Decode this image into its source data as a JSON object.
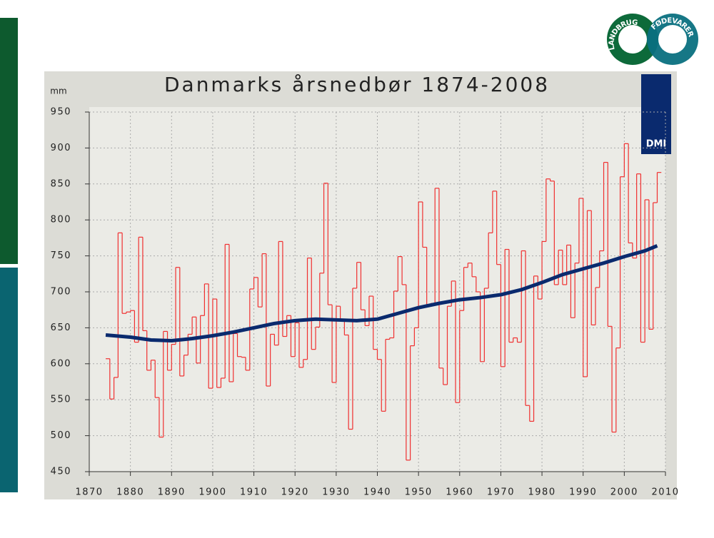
{
  "logo": {
    "left": "LANDBRUG",
    "right": "FØDEVARER"
  },
  "badge": "DMI",
  "chart_data": {
    "type": "line",
    "title": "Danmarks årsnedbør 1874-2008",
    "y_label": "mm",
    "xlim": [
      1870,
      2010
    ],
    "ylim": [
      450,
      950
    ],
    "xticks": [
      1870,
      1880,
      1890,
      1900,
      1910,
      1920,
      1930,
      1940,
      1950,
      1960,
      1970,
      1980,
      1990,
      2000,
      2010
    ],
    "yticks": [
      450,
      500,
      550,
      600,
      650,
      700,
      750,
      800,
      850,
      900,
      950
    ],
    "grid": true,
    "series": [
      {
        "color": "#f03030",
        "step": true,
        "x": [
          1874,
          1875,
          1876,
          1877,
          1878,
          1879,
          1880,
          1881,
          1882,
          1883,
          1884,
          1885,
          1886,
          1887,
          1888,
          1889,
          1890,
          1891,
          1892,
          1893,
          1894,
          1895,
          1896,
          1897,
          1898,
          1899,
          1900,
          1901,
          1902,
          1903,
          1904,
          1905,
          1906,
          1907,
          1908,
          1909,
          1910,
          1911,
          1912,
          1913,
          1914,
          1915,
          1916,
          1917,
          1918,
          1919,
          1920,
          1921,
          1922,
          1923,
          1924,
          1925,
          1926,
          1927,
          1928,
          1929,
          1930,
          1931,
          1932,
          1933,
          1934,
          1935,
          1936,
          1937,
          1938,
          1939,
          1940,
          1941,
          1942,
          1943,
          1944,
          1945,
          1946,
          1947,
          1948,
          1949,
          1950,
          1951,
          1952,
          1953,
          1954,
          1955,
          1956,
          1957,
          1958,
          1959,
          1960,
          1961,
          1962,
          1963,
          1964,
          1965,
          1966,
          1967,
          1968,
          1969,
          1970,
          1971,
          1972,
          1973,
          1974,
          1975,
          1976,
          1977,
          1978,
          1979,
          1980,
          1981,
          1982,
          1983,
          1984,
          1985,
          1986,
          1987,
          1988,
          1989,
          1990,
          1991,
          1992,
          1993,
          1994,
          1995,
          1996,
          1997,
          1998,
          1999,
          2000,
          2001,
          2002,
          2003,
          2004,
          2005,
          2006,
          2007,
          2008
        ],
        "values": [
          607,
          551,
          581,
          782,
          670,
          672,
          674,
          630,
          776,
          646,
          591,
          605,
          553,
          498,
          645,
          591,
          627,
          734,
          583,
          612,
          641,
          665,
          601,
          667,
          711,
          566,
          690,
          567,
          580,
          766,
          575,
          642,
          610,
          609,
          591,
          704,
          720,
          679,
          753,
          569,
          641,
          626,
          770,
          638,
          667,
          610,
          657,
          595,
          606,
          747,
          620,
          651,
          726,
          851,
          682,
          574,
          680,
          662,
          640,
          509,
          705,
          741,
          675,
          653,
          694,
          620,
          606,
          534,
          634,
          636,
          701,
          749,
          710,
          466,
          625,
          650,
          825,
          762,
          681,
          684,
          844,
          594,
          571,
          680,
          715,
          546,
          674,
          734,
          740,
          721,
          700,
          603,
          705,
          782,
          840,
          738,
          596,
          759,
          630,
          636,
          630,
          757,
          542,
          520,
          722,
          690,
          770,
          857,
          854,
          710,
          758,
          710,
          765,
          664,
          740,
          830,
          582,
          813,
          654,
          706,
          757,
          880,
          652,
          505,
          622,
          860,
          906,
          768,
          747,
          864,
          630,
          828,
          648,
          824,
          866
        ]
      },
      {
        "color": "#0a2a6e",
        "step": false,
        "x": [
          1874,
          1880,
          1885,
          1890,
          1895,
          1900,
          1905,
          1910,
          1915,
          1920,
          1925,
          1930,
          1935,
          1940,
          1945,
          1950,
          1955,
          1960,
          1965,
          1970,
          1975,
          1980,
          1985,
          1990,
          1995,
          2000,
          2005,
          2008
        ],
        "values": [
          640,
          637,
          633,
          632,
          635,
          639,
          644,
          650,
          656,
          660,
          662,
          661,
          660,
          662,
          670,
          678,
          684,
          689,
          692,
          696,
          703,
          713,
          724,
          732,
          740,
          749,
          757,
          764
        ]
      }
    ]
  }
}
